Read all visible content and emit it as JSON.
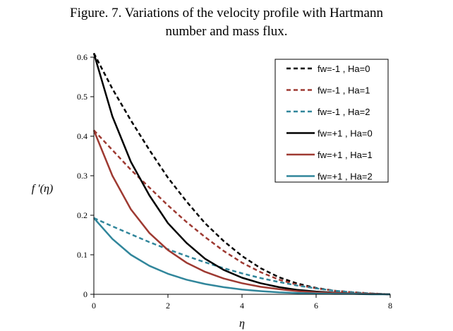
{
  "title_lines": [
    "Figure. 7. Variations of the velocity profile with Hartmann",
    "number and mass flux."
  ],
  "chart_data": {
    "type": "line",
    "title": "Figure. 7. Variations of the velocity profile with Hartmann number and mass flux.",
    "xlabel": "η",
    "ylabel": "f ′(η)",
    "xlim": [
      0,
      8
    ],
    "ylim": [
      0,
      0.6
    ],
    "xticks": [
      "0",
      "2",
      "4",
      "6",
      "8"
    ],
    "yticks": [
      "0",
      "0.1",
      "0.2",
      "0.3",
      "0.4",
      "0.5",
      "0.6"
    ],
    "grid": false,
    "legend_position": "top-right",
    "x": [
      0,
      0.5,
      1,
      1.5,
      2,
      2.5,
      3,
      3.5,
      4,
      4.5,
      5,
      5.5,
      6,
      6.5,
      7,
      7.5,
      8
    ],
    "series": [
      {
        "name": "fw=-1 , Ha=0",
        "color": "#000000",
        "dash": true,
        "values": [
          0.61,
          0.52,
          0.44,
          0.365,
          0.295,
          0.235,
          0.18,
          0.135,
          0.097,
          0.066,
          0.043,
          0.027,
          0.016,
          0.009,
          0.005,
          0.002,
          0.0
        ]
      },
      {
        "name": "fw=-1 , Ha=1",
        "color": "#9e3a32",
        "dash": true,
        "values": [
          0.415,
          0.365,
          0.315,
          0.27,
          0.225,
          0.183,
          0.145,
          0.11,
          0.08,
          0.056,
          0.037,
          0.024,
          0.015,
          0.009,
          0.005,
          0.002,
          0.0
        ]
      },
      {
        "name": "fw=-1 , Ha=2",
        "color": "#31869b",
        "dash": true,
        "values": [
          0.193,
          0.172,
          0.152,
          0.132,
          0.114,
          0.097,
          0.081,
          0.066,
          0.053,
          0.041,
          0.031,
          0.022,
          0.015,
          0.009,
          0.005,
          0.002,
          0.0
        ]
      },
      {
        "name": "fw=+1 , Ha=0",
        "color": "#000000",
        "dash": false,
        "values": [
          0.61,
          0.45,
          0.335,
          0.25,
          0.18,
          0.13,
          0.09,
          0.062,
          0.042,
          0.028,
          0.018,
          0.011,
          0.007,
          0.004,
          0.002,
          0.001,
          0.0
        ]
      },
      {
        "name": "fw=+1 , Ha=1",
        "color": "#9e3a32",
        "dash": false,
        "values": [
          0.415,
          0.3,
          0.215,
          0.155,
          0.112,
          0.08,
          0.057,
          0.04,
          0.028,
          0.019,
          0.013,
          0.008,
          0.005,
          0.003,
          0.002,
          0.001,
          0.0
        ]
      },
      {
        "name": "fw=+1 , Ha=2",
        "color": "#31869b",
        "dash": false,
        "values": [
          0.193,
          0.14,
          0.1,
          0.072,
          0.052,
          0.037,
          0.026,
          0.018,
          0.012,
          0.008,
          0.005,
          0.003,
          0.002,
          0.001,
          0.001,
          0.0,
          0.0
        ]
      }
    ]
  }
}
